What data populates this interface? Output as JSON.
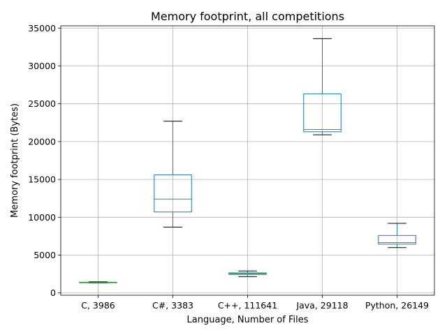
{
  "chart_data": {
    "type": "box",
    "title": "Memory footprint, all competitions",
    "xlabel": "Language, Number of Files",
    "ylabel": "Memory footprint (Bytes)",
    "categories": [
      "C, 3986",
      "C#, 3383",
      "C++, 111641",
      "Java, 29118",
      "Python, 26149"
    ],
    "ylim": [
      -300,
      35300
    ],
    "yticks": [
      0,
      5000,
      10000,
      15000,
      20000,
      25000,
      30000,
      35000
    ],
    "grid": true,
    "boxes": [
      {
        "whisker_low": 1330,
        "q1": 1360,
        "median": 1400,
        "q3": 1420,
        "whisker_high": 1480
      },
      {
        "whisker_low": 8700,
        "q1": 10700,
        "median": 12400,
        "q3": 15600,
        "whisker_high": 22700
      },
      {
        "whisker_low": 2150,
        "q1": 2450,
        "median": 2550,
        "q3": 2650,
        "whisker_high": 2900
      },
      {
        "whisker_low": 20900,
        "q1": 21300,
        "median": 21600,
        "q3": 26300,
        "whisker_high": 33600
      },
      {
        "whisker_low": 6000,
        "q1": 6450,
        "median": 6650,
        "q3": 7600,
        "whisker_high": 9200
      }
    ],
    "colors": {
      "box": "#1f77b4",
      "median": "#2ca02c",
      "whisker_cap": "#000000",
      "grid": "#b0b0b0",
      "axes": "#000000"
    }
  }
}
